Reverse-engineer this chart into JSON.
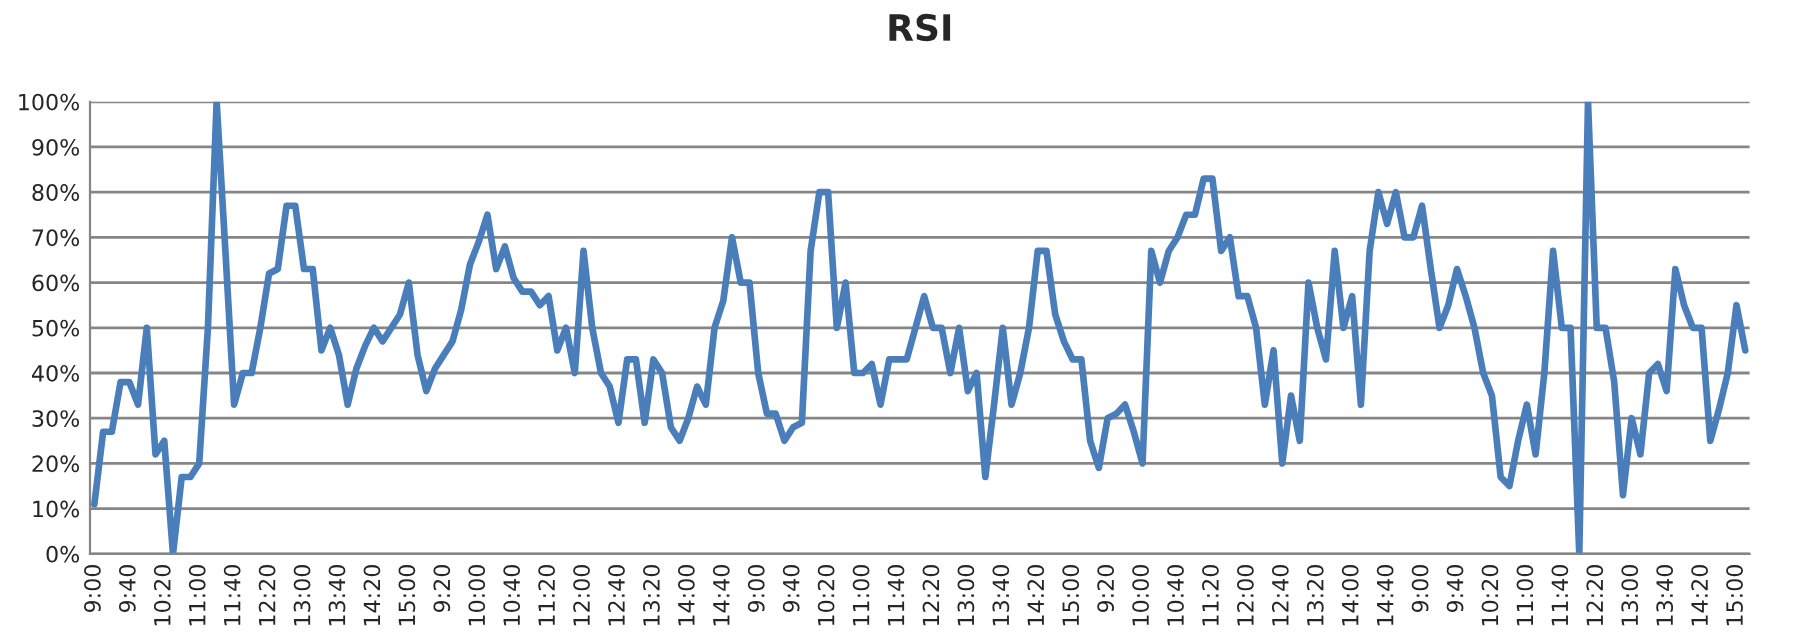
{
  "chart_data": {
    "type": "line",
    "title": "RSI",
    "categories": [
      "9:00",
      null,
      null,
      null,
      "9:40",
      null,
      null,
      null,
      "10:20",
      null,
      null,
      null,
      "11:00",
      null,
      null,
      null,
      "11:40",
      null,
      null,
      null,
      "12:20",
      null,
      null,
      null,
      "13:00",
      null,
      null,
      null,
      "13:40",
      null,
      null,
      null,
      "14:20",
      null,
      null,
      null,
      "15:00",
      null,
      null,
      null,
      "9:20",
      null,
      null,
      null,
      "10:00",
      null,
      null,
      null,
      "10:40",
      null,
      null,
      null,
      "11:20",
      null,
      null,
      null,
      "12:00",
      null,
      null,
      null,
      "12:40",
      null,
      null,
      null,
      "13:20",
      null,
      null,
      null,
      "14:00",
      null,
      null,
      null,
      "14:40",
      null,
      null,
      null,
      "9:00",
      null,
      null,
      null,
      "9:40",
      null,
      null,
      null,
      "10:20",
      null,
      null,
      null,
      "11:00",
      null,
      null,
      null,
      "11:40",
      null,
      null,
      null,
      "12:20",
      null,
      null,
      null,
      "13:00",
      null,
      null,
      null,
      "13:40",
      null,
      null,
      null,
      "14:20",
      null,
      null,
      null,
      "15:00",
      null,
      null,
      null,
      "9:20",
      null,
      null,
      null,
      "10:00",
      null,
      null,
      null,
      "10:40",
      null,
      null,
      null,
      "11:20",
      null,
      null,
      null,
      "12:00",
      null,
      null,
      null,
      "12:40",
      null,
      null,
      null,
      "13:20",
      null,
      null,
      null,
      "14:00",
      null,
      null,
      null,
      "14:40",
      null,
      null,
      null,
      "9:00",
      null,
      null,
      null,
      "9:40",
      null,
      null,
      null,
      "10:20",
      null,
      null,
      null,
      "11:00",
      null,
      null,
      null,
      "11:40",
      null,
      null,
      null,
      "12:20",
      null,
      null,
      null,
      "13:00",
      null,
      null,
      null,
      "13:40",
      null,
      null,
      null,
      "14:20",
      null,
      null,
      null,
      "15:00",
      null
    ],
    "series": [
      {
        "color": "#4a7ebb",
        "values": [
          11,
          27,
          27,
          38,
          38,
          33,
          50,
          22,
          25,
          0,
          17,
          17,
          20,
          50,
          100,
          67,
          33,
          40,
          40,
          50,
          62,
          63,
          77,
          77,
          63,
          63,
          45,
          50,
          44,
          33,
          41,
          46,
          50,
          47,
          50,
          53,
          60,
          44,
          36,
          41,
          44,
          47,
          54,
          64,
          69,
          75,
          63,
          68,
          61,
          58,
          58,
          55,
          57,
          45,
          50,
          40,
          67,
          50,
          40,
          37,
          29,
          43,
          43,
          29,
          43,
          40,
          28,
          25,
          30,
          37,
          33,
          50,
          56,
          70,
          60,
          60,
          40,
          31,
          31,
          25,
          28,
          29,
          67,
          80,
          80,
          50,
          60,
          40,
          40,
          42,
          33,
          43,
          43,
          43,
          50,
          57,
          50,
          50,
          40,
          50,
          36,
          40,
          17,
          33,
          50,
          33,
          40,
          50,
          67,
          67,
          53,
          47,
          43,
          43,
          25,
          19,
          30,
          31,
          33,
          27,
          20,
          67,
          60,
          67,
          70,
          75,
          75,
          83,
          83,
          67,
          70,
          57,
          57,
          50,
          33,
          45,
          20,
          35,
          25,
          60,
          50,
          43,
          67,
          50,
          57,
          33,
          67,
          80,
          73,
          80,
          70,
          70,
          77,
          63,
          50,
          55,
          63,
          57,
          50,
          40,
          35,
          17,
          15,
          25,
          33,
          22,
          40,
          67,
          50,
          50,
          0,
          100,
          50,
          50,
          38,
          13,
          30,
          22,
          40,
          42,
          36,
          63,
          55,
          50,
          50,
          25,
          32,
          40,
          55,
          45
        ]
      }
    ],
    "ylim": [
      0,
      100
    ],
    "yticks": [
      {
        "value": 0,
        "label": "0%"
      },
      {
        "value": 10,
        "label": "10%"
      },
      {
        "value": 20,
        "label": "20%"
      },
      {
        "value": 30,
        "label": "30%"
      },
      {
        "value": 40,
        "label": "40%"
      },
      {
        "value": 50,
        "label": "50%"
      },
      {
        "value": 60,
        "label": "60%"
      },
      {
        "value": 70,
        "label": "70%"
      },
      {
        "value": 80,
        "label": "80%"
      },
      {
        "value": 90,
        "label": "90%"
      },
      {
        "value": 100,
        "label": "100%"
      }
    ],
    "grid": "y",
    "marker": "none",
    "line_style": "solid"
  }
}
